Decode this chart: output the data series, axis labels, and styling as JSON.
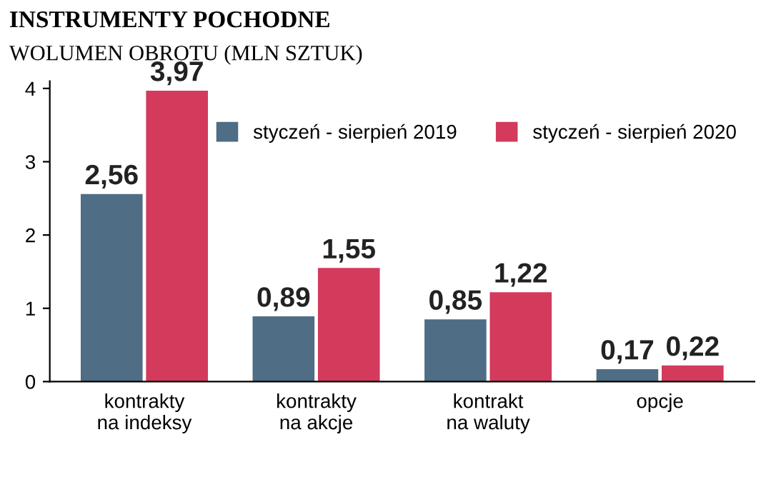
{
  "chart_data": {
    "type": "bar",
    "title": "INSTRUMENTY POCHODNE",
    "subtitle": "WOLUMEN OBROTU (MLN SZTUK)",
    "categories": [
      "kontrakty\nna indeksy",
      "kontrakty\nna akcje",
      "kontrakt\nna waluty",
      "opcje"
    ],
    "series": [
      {
        "name": "styczeń - sierpień 2019",
        "color": "#4f6d84",
        "values": [
          2.56,
          0.89,
          0.85,
          0.17
        ],
        "value_labels": [
          "2,56",
          "0,89",
          "0,85",
          "0,17"
        ]
      },
      {
        "name": "styczeń - sierpień 2020",
        "color": "#d43a5c",
        "values": [
          3.97,
          1.55,
          1.22,
          0.22
        ],
        "value_labels": [
          "3,97",
          "1,55",
          "1,22",
          "0,22"
        ]
      }
    ],
    "ylim": [
      0,
      4.1
    ],
    "yticks": [
      0,
      1,
      2,
      3,
      4
    ],
    "grid": false,
    "legend": "top right"
  }
}
